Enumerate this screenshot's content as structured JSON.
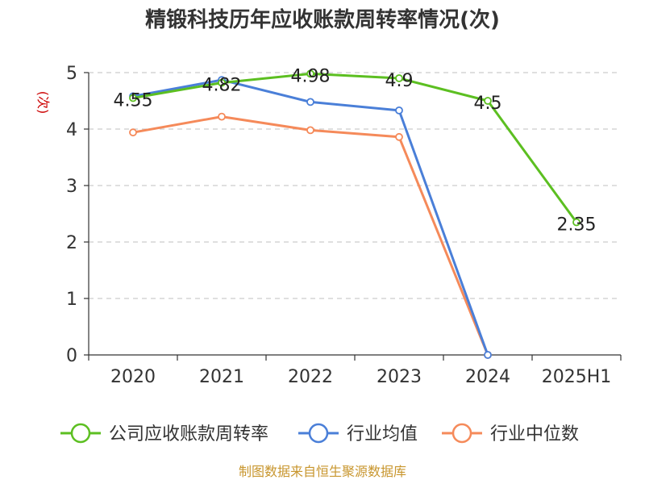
{
  "chart_data": {
    "type": "line",
    "title": "精锻科技历年应收账款周转率情况(次)",
    "ylabel": "(次)",
    "categories": [
      "2020",
      "2021",
      "2022",
      "2023",
      "2024",
      "2025H1"
    ],
    "yticks": [
      "0",
      "1",
      "2",
      "3",
      "4",
      "5"
    ],
    "ylim": [
      0,
      5
    ],
    "grid": true,
    "legend_position": "bottom",
    "series": [
      {
        "name": "公司应收账款周转率",
        "color": "#5cbf21",
        "values": [
          4.55,
          4.82,
          4.98,
          4.9,
          4.5,
          2.35
        ],
        "labels": [
          "4.55",
          "4.82",
          "4.98",
          "4.9",
          "4.5",
          "2.35"
        ]
      },
      {
        "name": "行业均值",
        "color": "#4a7fd8",
        "values": [
          4.58,
          4.87,
          4.48,
          4.33,
          0,
          null
        ]
      },
      {
        "name": "行业中位数",
        "color": "#f58a5a",
        "values": [
          3.94,
          4.22,
          3.98,
          3.86,
          0,
          null
        ]
      }
    ],
    "source": "制图数据来自恒生聚源数据库",
    "colors": {
      "title": "#333333",
      "ylabel": "#cc0000",
      "source": "#c8962e",
      "grid": "#cccccc",
      "axis": "#333333"
    }
  }
}
